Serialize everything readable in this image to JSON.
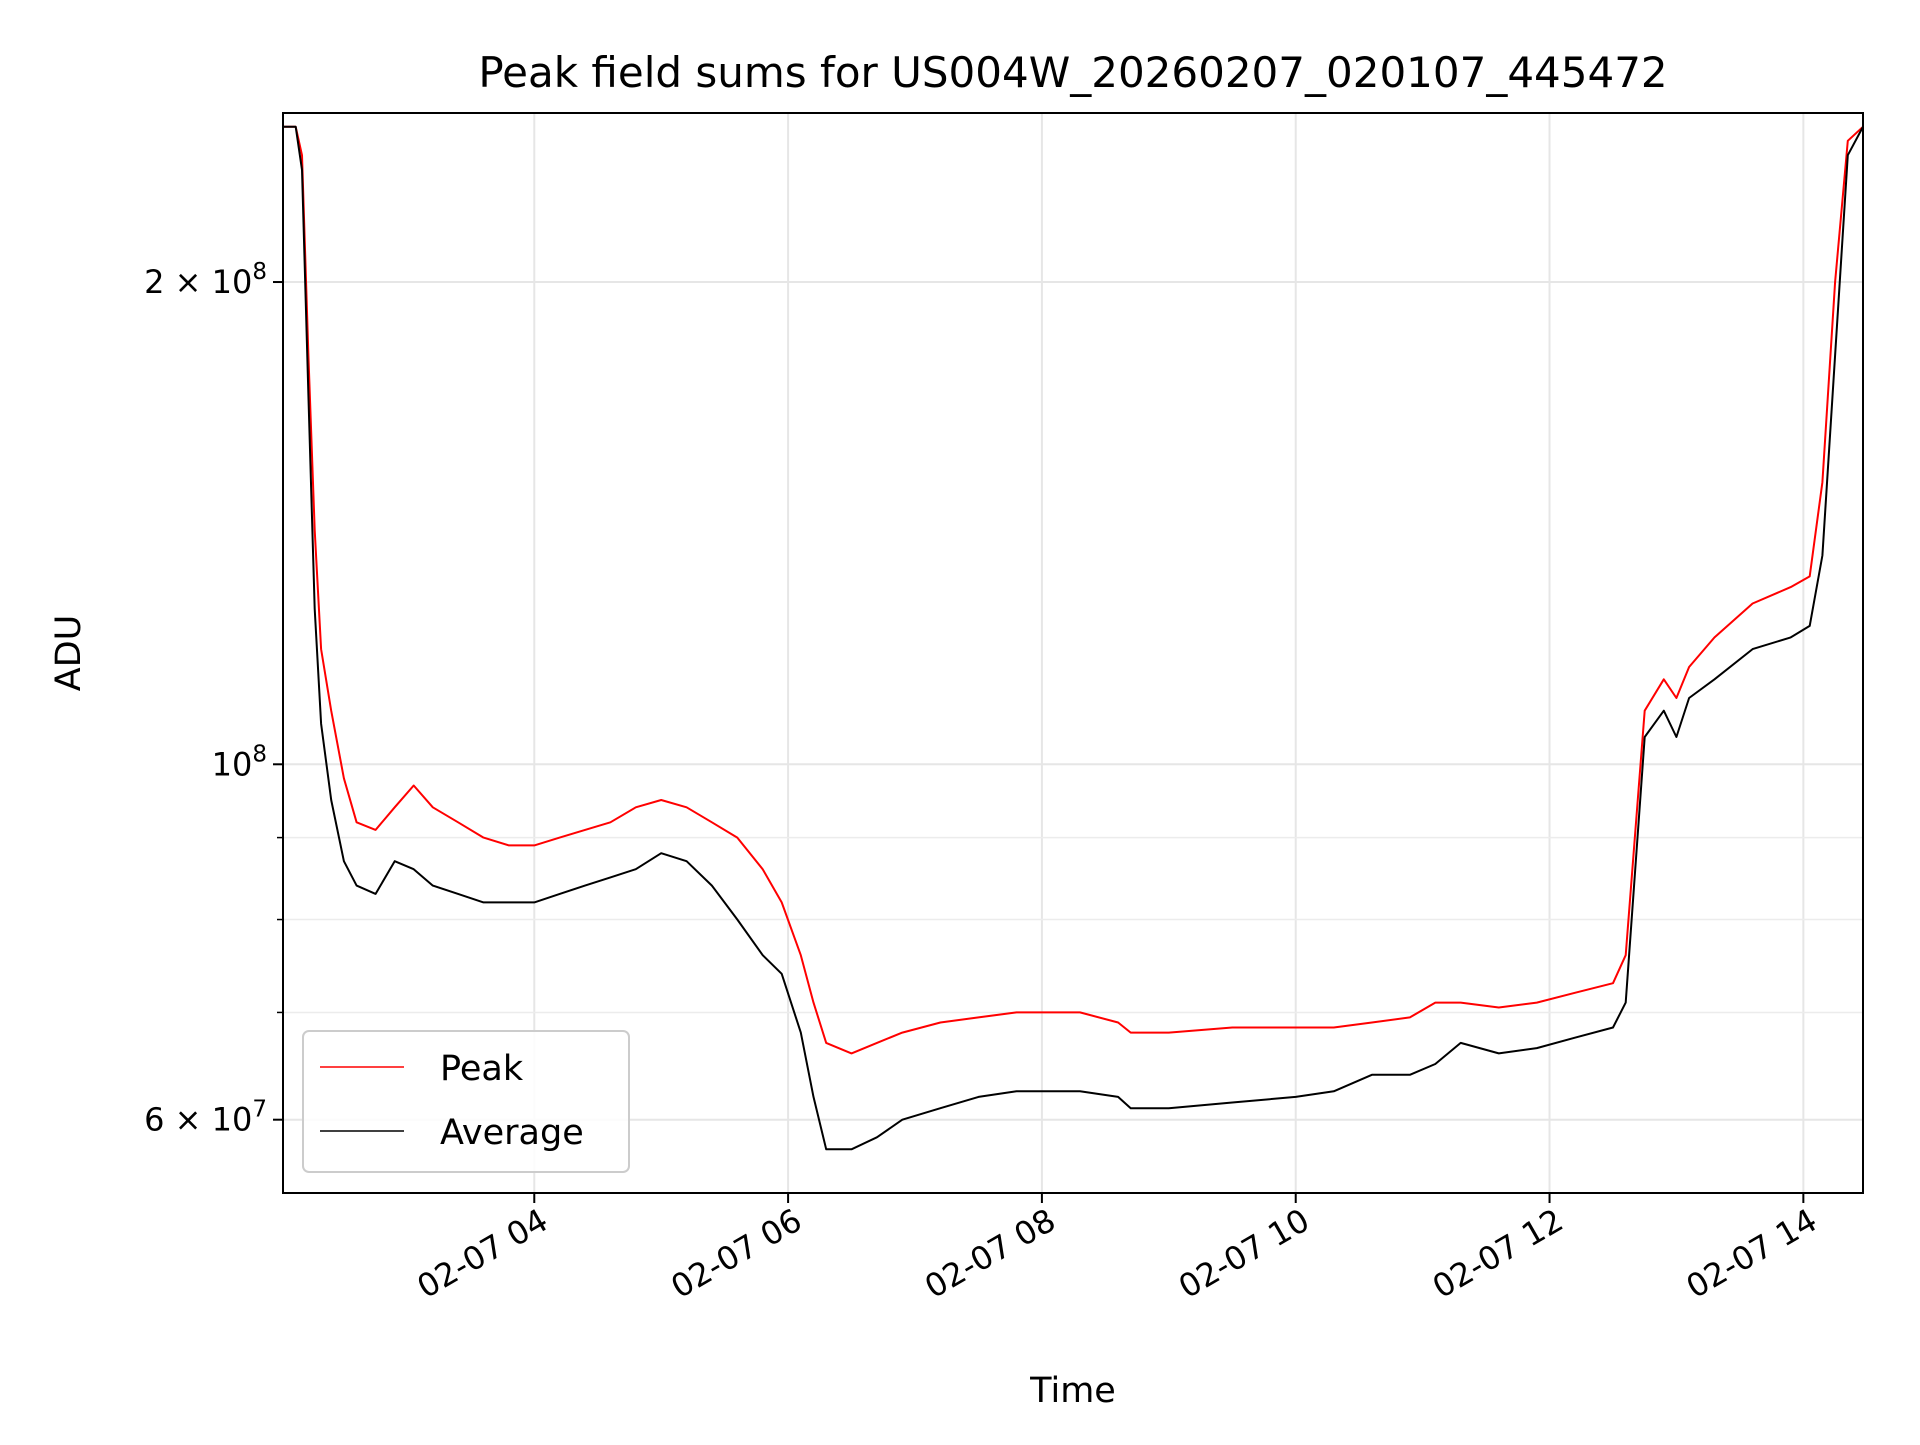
{
  "chart_data": {
    "type": "line",
    "title": "Peak field sums for US004W_20260207_020107_445472",
    "xlabel": "Time",
    "ylabel": "ADU",
    "y_scale": "log",
    "ylim": [
      54000000,
      255000000
    ],
    "xlim_hours": [
      2.02,
      14.47
    ],
    "x_ticks": [
      {
        "value": 4,
        "label": "02-07 04"
      },
      {
        "value": 6,
        "label": "02-07 06"
      },
      {
        "value": 8,
        "label": "02-07 08"
      },
      {
        "value": 10,
        "label": "02-07 10"
      },
      {
        "value": 12,
        "label": "02-07 12"
      },
      {
        "value": 14,
        "label": "02-07 14"
      }
    ],
    "y_major_ticks": [
      {
        "value": 60000000,
        "base": "6 × 10",
        "exp": "7"
      },
      {
        "value": 100000000,
        "base": "10",
        "exp": "8"
      },
      {
        "value": 200000000,
        "base": "2 × 10",
        "exp": "8"
      }
    ],
    "y_minor_ticks": [
      70000000,
      80000000,
      90000000
    ],
    "grid": true,
    "legend_position": "lower-left",
    "series": [
      {
        "name": "Peak",
        "color": "#ff0000",
        "x": [
          2.02,
          2.12,
          2.17,
          2.22,
          2.27,
          2.32,
          2.4,
          2.5,
          2.6,
          2.75,
          2.9,
          3.05,
          3.2,
          3.4,
          3.6,
          3.8,
          4.0,
          4.2,
          4.4,
          4.6,
          4.8,
          5.0,
          5.2,
          5.4,
          5.6,
          5.8,
          5.95,
          6.1,
          6.2,
          6.3,
          6.5,
          6.7,
          6.9,
          7.2,
          7.5,
          7.8,
          8.0,
          8.3,
          8.6,
          8.7,
          9.0,
          9.5,
          10.0,
          10.3,
          10.6,
          10.9,
          11.1,
          11.3,
          11.6,
          11.9,
          12.2,
          12.5,
          12.6,
          12.75,
          12.9,
          13.0,
          13.1,
          13.3,
          13.6,
          13.9,
          14.05,
          14.15,
          14.25,
          14.35,
          14.47
        ],
        "y": [
          250000000,
          250000000,
          240000000,
          180000000,
          140000000,
          118000000,
          108000000,
          98000000,
          92000000,
          91000000,
          94000000,
          97000000,
          94000000,
          92000000,
          90000000,
          89000000,
          89000000,
          90000000,
          91000000,
          92000000,
          94000000,
          95000000,
          94000000,
          92000000,
          90000000,
          86000000,
          82000000,
          76000000,
          71000000,
          67000000,
          66000000,
          67000000,
          68000000,
          69000000,
          69500000,
          70000000,
          70000000,
          70000000,
          69000000,
          68000000,
          68000000,
          68500000,
          68500000,
          68500000,
          69000000,
          69500000,
          71000000,
          71000000,
          70500000,
          71000000,
          72000000,
          73000000,
          76000000,
          108000000,
          113000000,
          110000000,
          115000000,
          120000000,
          126000000,
          129000000,
          131000000,
          150000000,
          200000000,
          245000000,
          250000000
        ]
      },
      {
        "name": "Average",
        "color": "#000000",
        "x": [
          2.02,
          2.12,
          2.17,
          2.22,
          2.27,
          2.32,
          2.4,
          2.5,
          2.6,
          2.75,
          2.9,
          3.05,
          3.2,
          3.4,
          3.6,
          3.8,
          4.0,
          4.2,
          4.4,
          4.6,
          4.8,
          5.0,
          5.2,
          5.4,
          5.6,
          5.8,
          5.95,
          6.1,
          6.2,
          6.3,
          6.5,
          6.7,
          6.9,
          7.2,
          7.5,
          7.8,
          8.0,
          8.3,
          8.6,
          8.7,
          9.0,
          9.5,
          10.0,
          10.3,
          10.6,
          10.9,
          11.1,
          11.3,
          11.6,
          11.9,
          12.2,
          12.5,
          12.6,
          12.75,
          12.9,
          13.0,
          13.1,
          13.3,
          13.6,
          13.9,
          14.05,
          14.15,
          14.25,
          14.35,
          14.47
        ],
        "y": [
          250000000,
          250000000,
          235000000,
          170000000,
          125000000,
          106000000,
          95000000,
          87000000,
          84000000,
          83000000,
          87000000,
          86000000,
          84000000,
          83000000,
          82000000,
          82000000,
          82000000,
          83000000,
          84000000,
          85000000,
          86000000,
          88000000,
          87000000,
          84000000,
          80000000,
          76000000,
          74000000,
          68000000,
          62000000,
          57500000,
          57500000,
          58500000,
          60000000,
          61000000,
          62000000,
          62500000,
          62500000,
          62500000,
          62000000,
          61000000,
          61000000,
          61500000,
          62000000,
          62500000,
          64000000,
          64000000,
          65000000,
          67000000,
          66000000,
          66500000,
          67500000,
          68500000,
          71000000,
          104000000,
          108000000,
          104000000,
          110000000,
          113000000,
          118000000,
          120000000,
          122000000,
          135000000,
          180000000,
          240000000,
          250000000
        ]
      }
    ]
  }
}
